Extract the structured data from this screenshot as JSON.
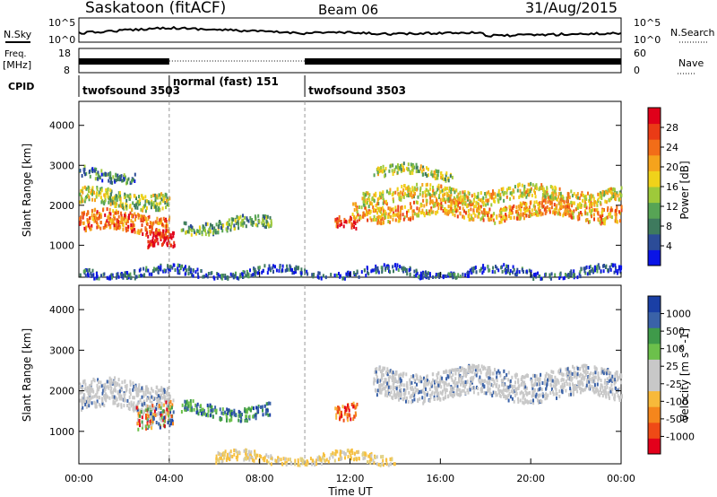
{
  "header": {
    "station": "Saskatoon (fitACF)",
    "beam": "Beam 06",
    "date": "31/Aug/2015"
  },
  "noise_panel": {
    "left_label": "N.Sky",
    "left_ticks": [
      "10^5",
      "10^0"
    ],
    "right_label": "N.Search",
    "right_ticks": [
      "10^5",
      "10^0"
    ]
  },
  "freq_panel": {
    "label_line1": "Freq.",
    "label_line2": "[MHz]",
    "left_ticks": [
      "18",
      "8"
    ],
    "right_label": "Nave",
    "right_ticks": [
      "60",
      "0"
    ]
  },
  "cpid": {
    "label": "CPID",
    "segments": [
      {
        "name": "twofsound 3503",
        "start_h": 0,
        "end_h": 4
      },
      {
        "name": "normal (fast) 151",
        "start_h": 4,
        "end_h": 10
      },
      {
        "name": "twofsound 3503",
        "start_h": 10,
        "end_h": 24
      }
    ]
  },
  "colors": {
    "power": [
      "#0a14e6",
      "#2c4c98",
      "#3e7a5e",
      "#57a455",
      "#9ec93a",
      "#f0d21a",
      "#f5a31c",
      "#f26d18",
      "#ea3b16",
      "#e0001a"
    ],
    "velocity": [
      "#e3001b",
      "#ef4a16",
      "#f5861c",
      "#f7b93a",
      "#c8c8c8",
      "#c8c8c8",
      "#6cc04b",
      "#3f9a4a",
      "#3a62a8",
      "#1a3fa5"
    ],
    "ground_scatter": "#c8c8c8"
  },
  "chart_data": [
    {
      "type": "heatmap",
      "panel": "power",
      "ylabel": "Slant Range [km]",
      "yticks": [
        1000,
        2000,
        3000,
        4000
      ],
      "ylim": [
        200,
        4600
      ],
      "xlim": [
        0,
        24
      ],
      "colorbar_label": "Power [dB]",
      "colorbar_ticks": [
        "4",
        "8",
        "12",
        "16",
        "20",
        "24",
        "28"
      ],
      "scatter_bands": [
        {
          "t_start": 0.0,
          "t_end": 4.0,
          "range_center": 1600,
          "range_width": 500,
          "level": 7
        },
        {
          "t_start": 0.0,
          "t_end": 4.0,
          "range_center": 2200,
          "range_width": 400,
          "level": 4
        },
        {
          "t_start": 0.0,
          "t_end": 2.5,
          "range_center": 2800,
          "range_width": 250,
          "level": 2
        },
        {
          "t_start": 3.0,
          "t_end": 4.2,
          "range_center": 1100,
          "range_width": 400,
          "level": 9
        },
        {
          "t_start": 4.5,
          "t_end": 8.5,
          "range_center": 1550,
          "range_width": 300,
          "level": 3
        },
        {
          "t_start": 11.3,
          "t_end": 12.3,
          "range_center": 1500,
          "range_width": 300,
          "level": 8
        },
        {
          "t_start": 12.0,
          "t_end": 24.0,
          "range_center": 1900,
          "range_width": 400,
          "level": 6
        },
        {
          "t_start": 12.5,
          "t_end": 24.0,
          "range_center": 2300,
          "range_width": 350,
          "level": 5
        },
        {
          "t_start": 13.0,
          "t_end": 16.5,
          "range_center": 2850,
          "range_width": 250,
          "level": 4
        },
        {
          "t_start": 0.0,
          "t_end": 24.0,
          "range_center": 350,
          "range_width": 200,
          "level": 1
        }
      ]
    },
    {
      "type": "heatmap",
      "panel": "velocity",
      "ylabel": "Slant Range [km]",
      "yticks": [
        1000,
        2000,
        3000,
        4000
      ],
      "ylim": [
        200,
        4600
      ],
      "xlim": [
        0,
        24
      ],
      "xlabel": "Time UT",
      "xticks": [
        "00:00",
        "04:00",
        "08:00",
        "12:00",
        "16:00",
        "20:00",
        "00:00"
      ],
      "colorbar_label": "Velocity [m s^-1]",
      "colorbar_ticks": [
        "-1000",
        "-500",
        "-100",
        "-25",
        "25",
        "100",
        "500",
        "1000"
      ],
      "scatter_bands": [
        {
          "t_start": 0.0,
          "t_end": 4.0,
          "range_center": 1900,
          "range_width": 700,
          "class": "ground"
        },
        {
          "t_start": 2.5,
          "t_end": 4.2,
          "range_center": 1500,
          "range_width": 600,
          "class": "mixed"
        },
        {
          "t_start": 4.5,
          "t_end": 8.5,
          "range_center": 1550,
          "range_width": 300,
          "class": "positive"
        },
        {
          "t_start": 11.3,
          "t_end": 12.3,
          "range_center": 1550,
          "range_width": 400,
          "class": "negative"
        },
        {
          "t_start": 13.0,
          "t_end": 24.0,
          "range_center": 2200,
          "range_width": 700,
          "class": "ground"
        },
        {
          "t_start": 6.0,
          "t_end": 14.0,
          "range_center": 350,
          "range_width": 250,
          "class": "weak_negative"
        }
      ]
    }
  ]
}
